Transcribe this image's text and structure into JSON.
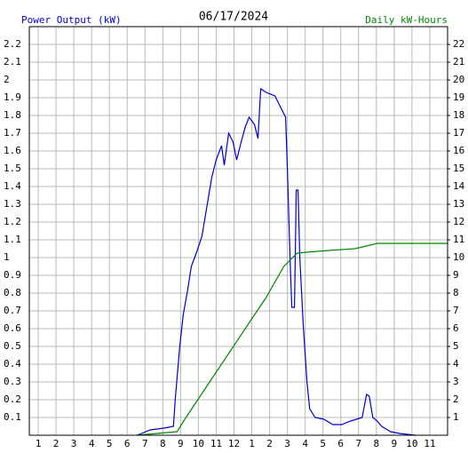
{
  "chart_data": {
    "type": "line",
    "title": "06/17/2024",
    "y_label": "Power Output (kW)",
    "y2_label": "Daily kW-Hours",
    "xlim": [
      0.5,
      24
    ],
    "xticks": [
      1,
      2,
      3,
      4,
      5,
      6,
      7,
      8,
      9,
      10,
      11,
      12,
      {
        "value": 13,
        "label": "1"
      },
      {
        "value": 14,
        "label": "2"
      },
      {
        "value": 15,
        "label": "3"
      },
      {
        "value": 16,
        "label": "4"
      },
      {
        "value": 17,
        "label": "5"
      },
      {
        "value": 18,
        "label": "6"
      },
      {
        "value": 19,
        "label": "7"
      },
      {
        "value": 20,
        "label": "8"
      },
      {
        "value": 21,
        "label": "9"
      },
      {
        "value": 22,
        "label": "10"
      },
      {
        "value": 23,
        "label": "11"
      }
    ],
    "ylim": [
      0,
      2.3
    ],
    "yticks": [
      0.1,
      0.2,
      0.3,
      0.4,
      0.5,
      0.6,
      0.7,
      0.8,
      0.9,
      1.0,
      1.1,
      1.2,
      1.3,
      1.4,
      1.5,
      1.6,
      1.7,
      1.8,
      1.9,
      2.0,
      2.1,
      2.2
    ],
    "y2lim": [
      0,
      23
    ],
    "y2ticks": [
      1,
      2,
      3,
      4,
      5,
      6,
      7,
      8,
      9,
      10,
      11,
      12,
      13,
      14,
      15,
      16,
      17,
      18,
      19,
      20,
      21,
      22
    ],
    "grid": true,
    "series": [
      {
        "name": "Power Output (kW)",
        "color": "#0000cc",
        "axis": "y",
        "x": [
          6.55,
          6.8,
          7.3,
          8.05,
          8.6,
          8.7,
          8.95,
          9.15,
          9.4,
          9.6,
          9.9,
          10.2,
          10.5,
          10.75,
          11.0,
          11.3,
          11.45,
          11.7,
          11.95,
          12.15,
          12.4,
          12.65,
          12.85,
          13.15,
          13.35,
          13.5,
          13.8,
          14.3,
          14.6,
          14.9,
          15.0,
          15.15,
          15.25,
          15.4,
          15.5,
          15.6,
          15.7,
          15.9,
          16.1,
          16.25,
          16.55,
          17.05,
          17.55,
          18.05,
          18.55,
          19.2,
          19.45,
          19.6,
          19.8,
          20.05,
          20.3,
          20.8,
          21.3,
          22.2
        ],
        "values": [
          0.0,
          0.01,
          0.03,
          0.04,
          0.05,
          0.2,
          0.5,
          0.68,
          0.82,
          0.95,
          1.03,
          1.12,
          1.3,
          1.45,
          1.55,
          1.63,
          1.52,
          1.7,
          1.65,
          1.55,
          1.65,
          1.74,
          1.79,
          1.75,
          1.67,
          1.95,
          1.93,
          1.91,
          1.85,
          1.79,
          1.5,
          1.0,
          0.72,
          0.72,
          1.38,
          1.38,
          1.0,
          0.6,
          0.3,
          0.15,
          0.1,
          0.09,
          0.06,
          0.06,
          0.08,
          0.1,
          0.23,
          0.22,
          0.1,
          0.08,
          0.05,
          0.02,
          0.01,
          0.0
        ]
      },
      {
        "name": "Daily kW-Hours",
        "color": "#008800",
        "axis": "y2",
        "x": [
          6.55,
          8.8,
          9.3,
          9.8,
          10.8,
          11.8,
          12.8,
          13.8,
          14.8,
          15.55,
          16.05,
          17.3,
          18.8,
          20.05,
          24
        ],
        "values": [
          0,
          0.2,
          1.0,
          1.75,
          3.25,
          4.75,
          6.25,
          7.75,
          9.5,
          10.25,
          10.3,
          10.4,
          10.5,
          10.8,
          10.8
        ]
      }
    ]
  }
}
